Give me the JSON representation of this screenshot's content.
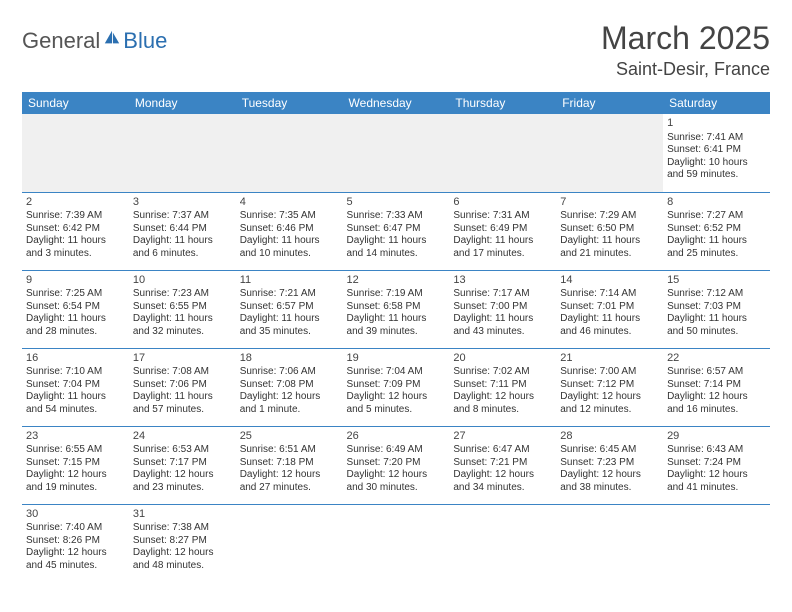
{
  "logo": {
    "part1": "General",
    "part2": "Blue"
  },
  "title": "March 2025",
  "location": "Saint-Desir, France",
  "colors": {
    "header_bg": "#3b84c4",
    "header_text": "#ffffff",
    "border": "#3b84c4",
    "logo_accent": "#2b6fb0",
    "empty_bg": "#f0f0f0"
  },
  "day_headers": [
    "Sunday",
    "Monday",
    "Tuesday",
    "Wednesday",
    "Thursday",
    "Friday",
    "Saturday"
  ],
  "weeks": [
    [
      null,
      null,
      null,
      null,
      null,
      null,
      {
        "n": "1",
        "sr": "Sunrise: 7:41 AM",
        "ss": "Sunset: 6:41 PM",
        "d1": "Daylight: 10 hours",
        "d2": "and 59 minutes."
      }
    ],
    [
      {
        "n": "2",
        "sr": "Sunrise: 7:39 AM",
        "ss": "Sunset: 6:42 PM",
        "d1": "Daylight: 11 hours",
        "d2": "and 3 minutes."
      },
      {
        "n": "3",
        "sr": "Sunrise: 7:37 AM",
        "ss": "Sunset: 6:44 PM",
        "d1": "Daylight: 11 hours",
        "d2": "and 6 minutes."
      },
      {
        "n": "4",
        "sr": "Sunrise: 7:35 AM",
        "ss": "Sunset: 6:46 PM",
        "d1": "Daylight: 11 hours",
        "d2": "and 10 minutes."
      },
      {
        "n": "5",
        "sr": "Sunrise: 7:33 AM",
        "ss": "Sunset: 6:47 PM",
        "d1": "Daylight: 11 hours",
        "d2": "and 14 minutes."
      },
      {
        "n": "6",
        "sr": "Sunrise: 7:31 AM",
        "ss": "Sunset: 6:49 PM",
        "d1": "Daylight: 11 hours",
        "d2": "and 17 minutes."
      },
      {
        "n": "7",
        "sr": "Sunrise: 7:29 AM",
        "ss": "Sunset: 6:50 PM",
        "d1": "Daylight: 11 hours",
        "d2": "and 21 minutes."
      },
      {
        "n": "8",
        "sr": "Sunrise: 7:27 AM",
        "ss": "Sunset: 6:52 PM",
        "d1": "Daylight: 11 hours",
        "d2": "and 25 minutes."
      }
    ],
    [
      {
        "n": "9",
        "sr": "Sunrise: 7:25 AM",
        "ss": "Sunset: 6:54 PM",
        "d1": "Daylight: 11 hours",
        "d2": "and 28 minutes."
      },
      {
        "n": "10",
        "sr": "Sunrise: 7:23 AM",
        "ss": "Sunset: 6:55 PM",
        "d1": "Daylight: 11 hours",
        "d2": "and 32 minutes."
      },
      {
        "n": "11",
        "sr": "Sunrise: 7:21 AM",
        "ss": "Sunset: 6:57 PM",
        "d1": "Daylight: 11 hours",
        "d2": "and 35 minutes."
      },
      {
        "n": "12",
        "sr": "Sunrise: 7:19 AM",
        "ss": "Sunset: 6:58 PM",
        "d1": "Daylight: 11 hours",
        "d2": "and 39 minutes."
      },
      {
        "n": "13",
        "sr": "Sunrise: 7:17 AM",
        "ss": "Sunset: 7:00 PM",
        "d1": "Daylight: 11 hours",
        "d2": "and 43 minutes."
      },
      {
        "n": "14",
        "sr": "Sunrise: 7:14 AM",
        "ss": "Sunset: 7:01 PM",
        "d1": "Daylight: 11 hours",
        "d2": "and 46 minutes."
      },
      {
        "n": "15",
        "sr": "Sunrise: 7:12 AM",
        "ss": "Sunset: 7:03 PM",
        "d1": "Daylight: 11 hours",
        "d2": "and 50 minutes."
      }
    ],
    [
      {
        "n": "16",
        "sr": "Sunrise: 7:10 AM",
        "ss": "Sunset: 7:04 PM",
        "d1": "Daylight: 11 hours",
        "d2": "and 54 minutes."
      },
      {
        "n": "17",
        "sr": "Sunrise: 7:08 AM",
        "ss": "Sunset: 7:06 PM",
        "d1": "Daylight: 11 hours",
        "d2": "and 57 minutes."
      },
      {
        "n": "18",
        "sr": "Sunrise: 7:06 AM",
        "ss": "Sunset: 7:08 PM",
        "d1": "Daylight: 12 hours",
        "d2": "and 1 minute."
      },
      {
        "n": "19",
        "sr": "Sunrise: 7:04 AM",
        "ss": "Sunset: 7:09 PM",
        "d1": "Daylight: 12 hours",
        "d2": "and 5 minutes."
      },
      {
        "n": "20",
        "sr": "Sunrise: 7:02 AM",
        "ss": "Sunset: 7:11 PM",
        "d1": "Daylight: 12 hours",
        "d2": "and 8 minutes."
      },
      {
        "n": "21",
        "sr": "Sunrise: 7:00 AM",
        "ss": "Sunset: 7:12 PM",
        "d1": "Daylight: 12 hours",
        "d2": "and 12 minutes."
      },
      {
        "n": "22",
        "sr": "Sunrise: 6:57 AM",
        "ss": "Sunset: 7:14 PM",
        "d1": "Daylight: 12 hours",
        "d2": "and 16 minutes."
      }
    ],
    [
      {
        "n": "23",
        "sr": "Sunrise: 6:55 AM",
        "ss": "Sunset: 7:15 PM",
        "d1": "Daylight: 12 hours",
        "d2": "and 19 minutes."
      },
      {
        "n": "24",
        "sr": "Sunrise: 6:53 AM",
        "ss": "Sunset: 7:17 PM",
        "d1": "Daylight: 12 hours",
        "d2": "and 23 minutes."
      },
      {
        "n": "25",
        "sr": "Sunrise: 6:51 AM",
        "ss": "Sunset: 7:18 PM",
        "d1": "Daylight: 12 hours",
        "d2": "and 27 minutes."
      },
      {
        "n": "26",
        "sr": "Sunrise: 6:49 AM",
        "ss": "Sunset: 7:20 PM",
        "d1": "Daylight: 12 hours",
        "d2": "and 30 minutes."
      },
      {
        "n": "27",
        "sr": "Sunrise: 6:47 AM",
        "ss": "Sunset: 7:21 PM",
        "d1": "Daylight: 12 hours",
        "d2": "and 34 minutes."
      },
      {
        "n": "28",
        "sr": "Sunrise: 6:45 AM",
        "ss": "Sunset: 7:23 PM",
        "d1": "Daylight: 12 hours",
        "d2": "and 38 minutes."
      },
      {
        "n": "29",
        "sr": "Sunrise: 6:43 AM",
        "ss": "Sunset: 7:24 PM",
        "d1": "Daylight: 12 hours",
        "d2": "and 41 minutes."
      }
    ],
    [
      {
        "n": "30",
        "sr": "Sunrise: 7:40 AM",
        "ss": "Sunset: 8:26 PM",
        "d1": "Daylight: 12 hours",
        "d2": "and 45 minutes."
      },
      {
        "n": "31",
        "sr": "Sunrise: 7:38 AM",
        "ss": "Sunset: 8:27 PM",
        "d1": "Daylight: 12 hours",
        "d2": "and 48 minutes."
      },
      null,
      null,
      null,
      null,
      null
    ]
  ]
}
